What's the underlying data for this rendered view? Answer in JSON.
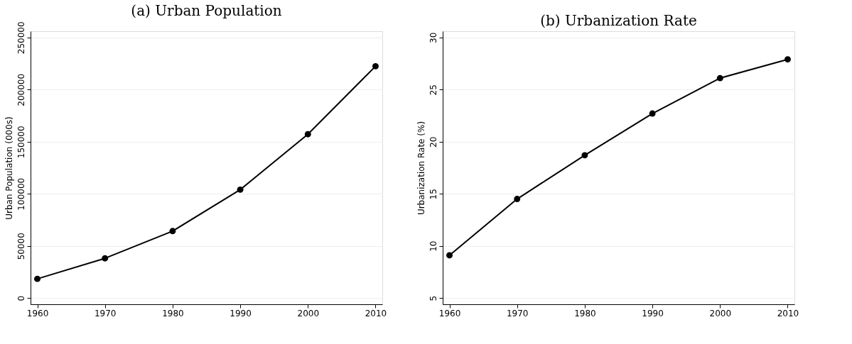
{
  "chart_data": [
    {
      "type": "line",
      "title": "(a) Urban Population",
      "ylabel": "Urban Population (000s)",
      "x": [
        1960,
        1970,
        1980,
        1990,
        2000,
        2010
      ],
      "series": [
        {
          "color": "#000000",
          "values": [
            18400,
            38100,
            64200,
            104000,
            157200,
            222400
          ]
        }
      ],
      "xlim": [
        1959,
        2011
      ],
      "xticks": [
        1960,
        1970,
        1980,
        1990,
        2000,
        2010
      ],
      "ylim": [
        -6000,
        256000
      ],
      "yticks": [
        0,
        50000,
        100000,
        150000,
        200000,
        250000
      ],
      "grid": "y",
      "marker": "circle",
      "line_style": "solid"
    },
    {
      "type": "line",
      "title": "(b) Urbanization Rate",
      "ylabel": "Urbanization Rate (%)",
      "x": [
        1960,
        1970,
        1980,
        1990,
        2000,
        2010
      ],
      "series": [
        {
          "color": "#000000",
          "values": [
            9.1,
            14.5,
            18.7,
            22.7,
            26.1,
            27.9
          ]
        }
      ],
      "xlim": [
        1959,
        2011
      ],
      "xticks": [
        1960,
        1970,
        1980,
        1990,
        2000,
        2010
      ],
      "ylim": [
        4.4,
        30.6
      ],
      "yticks": [
        5,
        10,
        15,
        20,
        25,
        30
      ],
      "grid": "y",
      "marker": "circle",
      "line_style": "solid"
    }
  ]
}
